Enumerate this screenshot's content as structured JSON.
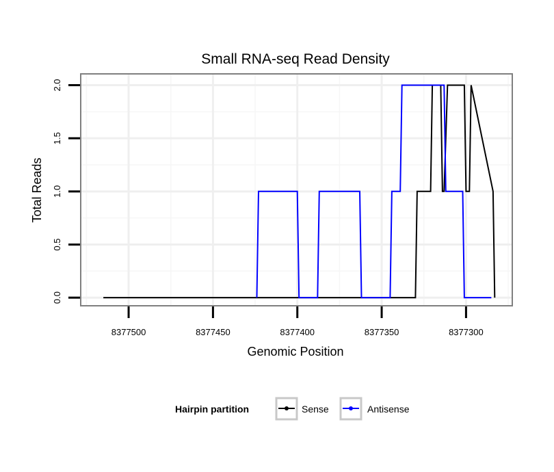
{
  "chart_data": {
    "type": "line",
    "title": "Small RNA-seq Read Density",
    "xlabel": "Genomic Position",
    "ylabel": "Total Reads",
    "x_reversed": true,
    "xlim": [
      8377528,
      8377273
    ],
    "ylim": [
      -0.07,
      2.1
    ],
    "x_ticks": [
      8377500,
      8377450,
      8377400,
      8377350,
      8377300
    ],
    "x_tick_labels": [
      "8377500",
      "8377450",
      "8377400",
      "8377350",
      "8377300"
    ],
    "y_ticks": [
      0,
      0.5,
      1,
      1.5,
      2
    ],
    "y_tick_labels": [
      "0.0",
      "0.5",
      "1.0",
      "1.5",
      "2.0"
    ],
    "grid": true,
    "legend": {
      "title": "Hairpin partition",
      "position": "bottom",
      "entries": [
        "Sense",
        "Antisense"
      ]
    },
    "series": [
      {
        "name": "Sense",
        "color": "#000000",
        "x": [
          8377515,
          8377330,
          8377329,
          8377321,
          8377320,
          8377315,
          8377314,
          8377313,
          8377311,
          8377301,
          8377300,
          8377298,
          8377297,
          8377284,
          8377283
        ],
        "y": [
          0,
          0,
          1,
          1,
          2,
          2,
          1,
          1,
          2,
          2,
          1,
          1,
          2,
          1,
          0
        ]
      },
      {
        "name": "Antisense",
        "color": "#0000ff",
        "x": [
          8377424,
          8377423,
          8377400,
          8377399,
          8377388,
          8377387,
          8377363,
          8377362,
          8377345,
          8377344,
          8377339,
          8377338,
          8377313,
          8377312,
          8377302,
          8377301,
          8377285
        ],
        "y": [
          0,
          1,
          1,
          0,
          0,
          1,
          1,
          0,
          0,
          1,
          1,
          2,
          2,
          1,
          1,
          0,
          0
        ]
      }
    ]
  }
}
